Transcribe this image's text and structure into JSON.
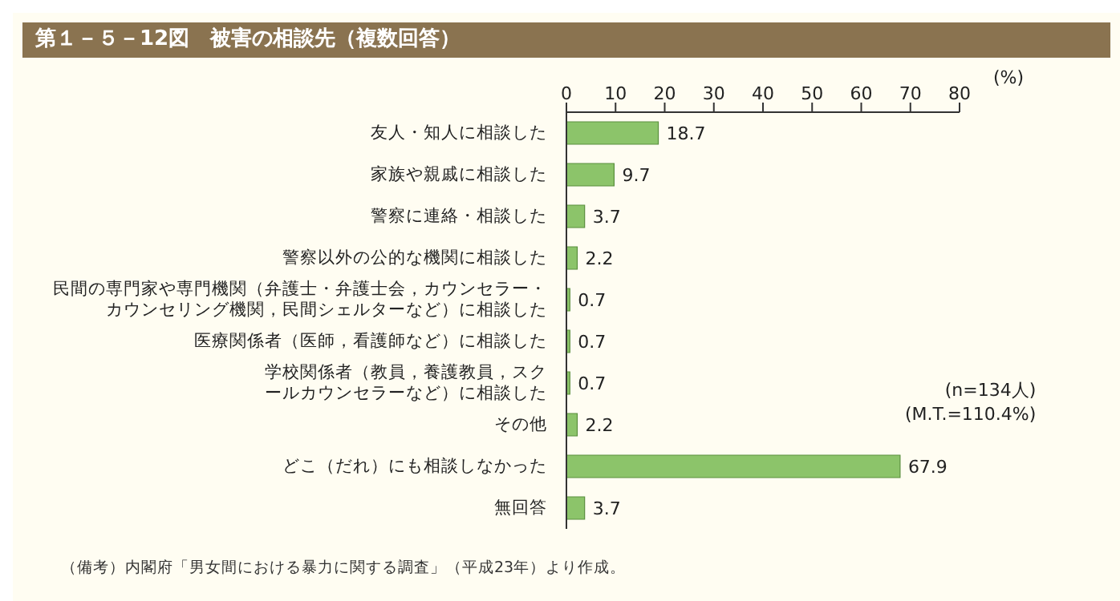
{
  "chart_data": {
    "type": "bar",
    "orientation": "horizontal",
    "title": "第１－５－12図　被害の相談先（複数回答）",
    "xlabel": "(%)",
    "categories": [
      "友人・知人に相談した",
      "家族や親戚に相談した",
      "警察に連絡・相談した",
      "警察以外の公的な機関に相談した",
      "民間の専門家や専門機関（弁護士・弁護士会，カウンセラー・カウンセリング機関，民間シェルターなど）に相談した",
      "医療関係者（医師，看護師など）に相談した",
      "学校関係者（教員，養護教員，スクールカウンセラーなど）に相談した",
      "その他",
      "どこ（だれ）にも相談しなかった",
      "無回答"
    ],
    "values": [
      18.7,
      9.7,
      3.7,
      2.2,
      0.7,
      0.7,
      0.7,
      2.2,
      67.9,
      3.7
    ],
    "color": "#8cc46a",
    "xlim": [
      0,
      80
    ],
    "xticks": [
      0,
      10,
      20,
      30,
      40,
      50,
      60,
      70,
      80
    ],
    "data_labels": true,
    "annotations": [
      "(n=134人)",
      "(M.T.=110.4%)",
      "（備考）内閣府「男女間における暴力に関する調査」（平成23年）より作成。"
    ]
  }
}
